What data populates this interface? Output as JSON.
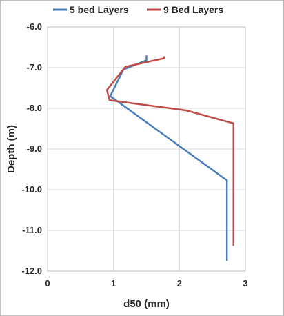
{
  "chart_data": {
    "type": "line",
    "title": "",
    "xlabel": "d50 (mm)",
    "ylabel": "Depth (m)",
    "xlim": [
      0,
      3
    ],
    "ylim": [
      -12.0,
      -6.0
    ],
    "x_ticks": [
      0,
      1,
      2,
      3
    ],
    "x_tick_labels": [
      "0",
      "1",
      "2",
      "3"
    ],
    "y_ticks": [
      -6.0,
      -7.0,
      -8.0,
      -9.0,
      -10.0,
      -11.0,
      -12.0
    ],
    "y_tick_labels": [
      "-6.0",
      "-7.0",
      "-8.0",
      "-9.0",
      "-10.0",
      "-11.0",
      "-12.0"
    ],
    "grid": true,
    "legend_position": "top",
    "series": [
      {
        "name": "5 bed Layers",
        "color": "#4a7ebb",
        "points": [
          [
            1.5,
            -6.7
          ],
          [
            1.5,
            -6.82
          ],
          [
            1.15,
            -7.05
          ],
          [
            0.95,
            -7.7
          ],
          [
            2.72,
            -9.77
          ],
          [
            2.72,
            -11.75
          ]
        ]
      },
      {
        "name": "9 Bed Layers",
        "color": "#be4b48",
        "points": [
          [
            1.77,
            -6.72
          ],
          [
            1.77,
            -6.77
          ],
          [
            1.18,
            -6.98
          ],
          [
            0.9,
            -7.55
          ],
          [
            0.94,
            -7.8
          ],
          [
            2.1,
            -8.05
          ],
          [
            2.82,
            -8.37
          ],
          [
            2.82,
            -11.38
          ]
        ]
      }
    ]
  }
}
